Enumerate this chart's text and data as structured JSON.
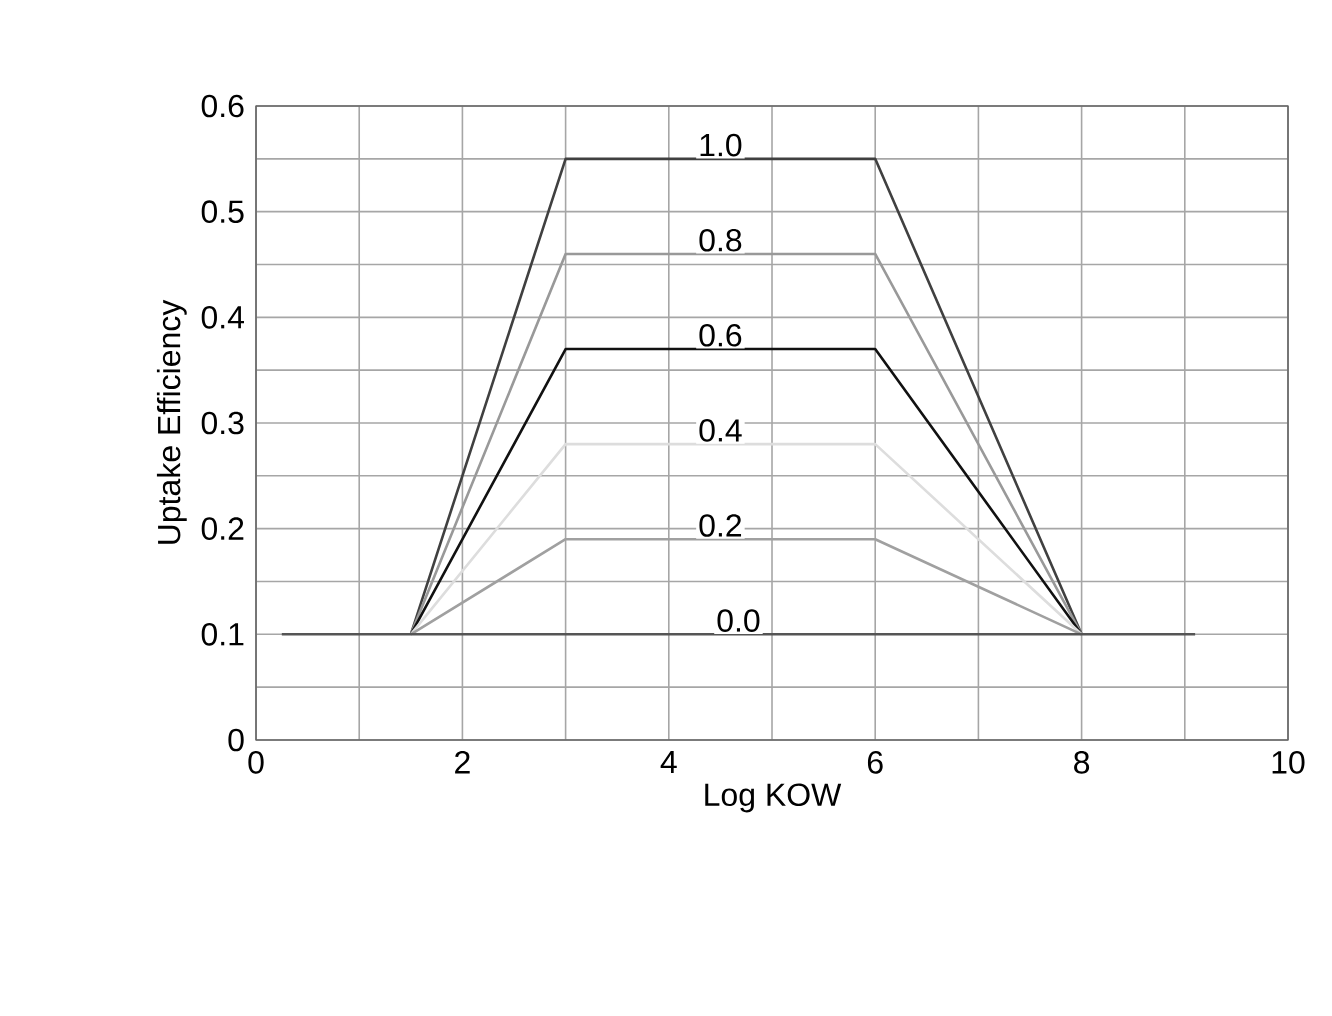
{
  "chart_data": {
    "type": "line",
    "xlabel": "Log KOW",
    "ylabel": "Uptake Efficiency",
    "xlim": [
      0,
      10
    ],
    "xticks": [
      0,
      2,
      4,
      6,
      8,
      10
    ],
    "ylim": [
      0,
      0.6
    ],
    "yticks": [
      0,
      0.1,
      0.2,
      0.3,
      0.4,
      0.5,
      0.6
    ],
    "grid": true,
    "legend": false,
    "marker": "none",
    "line_style": "solid",
    "series": [
      {
        "name": "1.0",
        "color": "#404040",
        "x": [
          1.5,
          3,
          6,
          8
        ],
        "values": [
          0.1,
          0.55,
          0.55,
          0.1
        ]
      },
      {
        "name": "0.8",
        "color": "#999999",
        "x": [
          1.5,
          3,
          6,
          8
        ],
        "values": [
          0.1,
          0.46,
          0.46,
          0.1
        ]
      },
      {
        "name": "0.6",
        "color": "#111111",
        "x": [
          1.5,
          3,
          6,
          8
        ],
        "values": [
          0.1,
          0.37,
          0.37,
          0.1
        ]
      },
      {
        "name": "0.4",
        "color": "#dddddd",
        "x": [
          1.5,
          3,
          6,
          8
        ],
        "values": [
          0.1,
          0.28,
          0.28,
          0.1
        ]
      },
      {
        "name": "0.2",
        "color": "#a0a0a0",
        "x": [
          1.5,
          3,
          6,
          8
        ],
        "values": [
          0.1,
          0.19,
          0.19,
          0.1
        ]
      },
      {
        "name": "0.0",
        "color": "#555555",
        "x": [
          0.25,
          9.1
        ],
        "values": [
          0.1,
          0.1
        ]
      }
    ]
  }
}
